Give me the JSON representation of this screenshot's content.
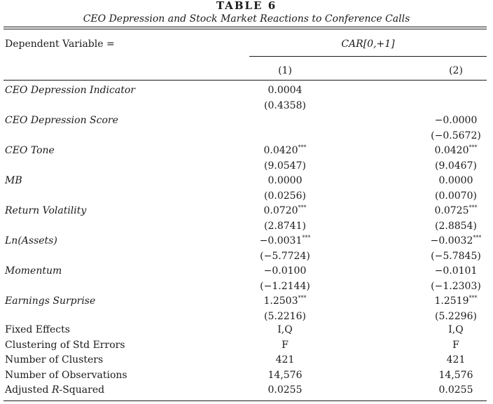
{
  "title": "TABLE 6",
  "subtitle": "CEO Depression and Stock Market Reactions to Conference Calls",
  "header": {
    "dep_var_label": "Dependent Variable =",
    "dep_var": "CAR[0,+1]",
    "col1": "(1)",
    "col2": "(2)"
  },
  "rows": [
    {
      "label": "CEO Depression Indicator",
      "c1": "0.0004",
      "c1_star": "",
      "c1_t": "(0.4358)",
      "c2": "",
      "c2_star": "",
      "c2_t": ""
    },
    {
      "label": "CEO Depression Score",
      "c1": "",
      "c1_star": "",
      "c1_t": "",
      "c2": "−0.0000",
      "c2_star": "",
      "c2_t": "(−0.5672)"
    },
    {
      "label": "CEO Tone",
      "c1": "0.0420",
      "c1_star": "***",
      "c1_t": "(9.0547)",
      "c2": "0.0420",
      "c2_star": "***",
      "c2_t": "(9.0467)"
    },
    {
      "label": "MB",
      "c1": "0.0000",
      "c1_star": "",
      "c1_t": "(0.0256)",
      "c2": "0.0000",
      "c2_star": "",
      "c2_t": "(0.0070)"
    },
    {
      "label": "Return Volatility",
      "c1": "0.0720",
      "c1_star": "***",
      "c1_t": "(2.8741)",
      "c2": "0.0725",
      "c2_star": "***",
      "c2_t": "(2.8854)"
    },
    {
      "label": "Ln(Assets)",
      "c1": "−0.0031",
      "c1_star": "***",
      "c1_t": "(−5.7724)",
      "c2": "−0.0032",
      "c2_star": "***",
      "c2_t": "(−5.7845)"
    },
    {
      "label": "Momentum",
      "c1": "−0.0100",
      "c1_star": "",
      "c1_t": "(−1.2144)",
      "c2": "−0.0101",
      "c2_star": "",
      "c2_t": "(−1.2303)"
    },
    {
      "label": "Earnings Surprise",
      "c1": "1.2503",
      "c1_star": "***",
      "c1_t": "(5.2216)",
      "c2": "1.2519",
      "c2_star": "***",
      "c2_t": "(5.2296)"
    }
  ],
  "stats": [
    {
      "label": "Fixed Effects",
      "c1": "I,Q",
      "c2": "I,Q"
    },
    {
      "label": "Clustering of Std Errors",
      "c1": "F",
      "c2": "F"
    },
    {
      "label": "Number of Clusters",
      "c1": "421",
      "c2": "421"
    },
    {
      "label": "Number of Observations",
      "c1": "14,576",
      "c2": "14,576"
    },
    {
      "label": "Adjusted R-Squared",
      "c1": "0.0255",
      "c2": "0.0255"
    }
  ]
}
